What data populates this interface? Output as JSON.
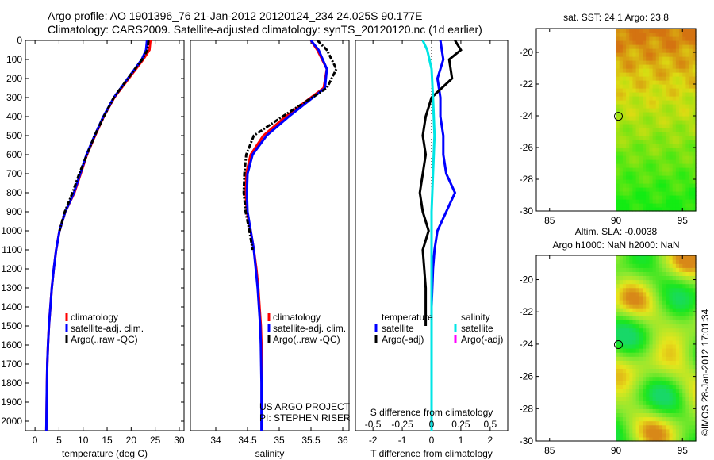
{
  "header": {
    "line1": "Argo profile: AO 1901396_76 21-Jan-2012 20120124_234 24.025S 90.177E",
    "line2": "Climatology: CARS2009. Satellite-adjusted climatology: synTS_20120120.nc (1d earlier)"
  },
  "colors": {
    "climatology": "#ff0000",
    "satellite": "#0000ff",
    "argo": "#000000",
    "sal_satellite": "#00e5e5",
    "sal_argo": "#ff00ff"
  },
  "chart_data": [
    {
      "type": "line",
      "id": "temperature",
      "xlabel": "temperature (deg C)",
      "ylabel": "",
      "xlim": [
        -2,
        31
      ],
      "ylim": [
        2050,
        0
      ],
      "xticks": [
        0,
        5,
        10,
        15,
        20,
        25,
        30
      ],
      "yticks": [
        0,
        100,
        200,
        300,
        400,
        500,
        600,
        700,
        800,
        900,
        1000,
        1100,
        1200,
        1300,
        1400,
        1500,
        1600,
        1700,
        1800,
        1900,
        2000
      ],
      "legend": [
        "climatology",
        "satellite-adj. clim.",
        "Argo(..raw -QC)"
      ],
      "series": [
        {
          "name": "climatology",
          "color": "#ff0000",
          "x": [
            24,
            23.8,
            22.5,
            19.5,
            16.5,
            14.3,
            12.5,
            10.8,
            9.5,
            8.2,
            6.3,
            5.1,
            4.4,
            3.9,
            3.5,
            3.2,
            2.9,
            2.7,
            2.55,
            2.45,
            2.35
          ],
          "y": [
            0,
            50,
            100,
            200,
            300,
            400,
            500,
            600,
            700,
            800,
            900,
            1000,
            1100,
            1200,
            1300,
            1400,
            1500,
            1600,
            1700,
            1850,
            2050
          ]
        },
        {
          "name": "satellite-adj. clim.",
          "color": "#0000ff",
          "x": [
            23.3,
            23.1,
            22.2,
            19.3,
            16.4,
            14.2,
            12.4,
            10.7,
            9.4,
            8.1,
            6.3,
            5.1,
            4.4,
            3.9,
            3.5,
            3.2,
            2.9,
            2.7,
            2.55,
            2.45,
            2.35
          ],
          "y": [
            0,
            50,
            100,
            200,
            300,
            400,
            500,
            600,
            700,
            800,
            900,
            1000,
            1100,
            1200,
            1300,
            1400,
            1500,
            1600,
            1700,
            1850,
            2050
          ]
        },
        {
          "name": "Argo(..raw -QC)",
          "color": "#000000",
          "x": [
            23.6,
            23.4,
            22.3,
            19.3,
            16.4,
            14.3,
            12.4,
            10.8,
            9.2,
            7.8,
            6.2,
            5.1
          ],
          "y": [
            0,
            50,
            100,
            200,
            300,
            400,
            500,
            600,
            700,
            800,
            900,
            1000
          ]
        }
      ]
    },
    {
      "type": "line",
      "id": "salinity",
      "xlabel": "salinity",
      "ylabel": "",
      "xlim": [
        33.6,
        36.1
      ],
      "ylim": [
        2050,
        0
      ],
      "xticks": [
        34,
        34.5,
        35,
        35.5,
        36
      ],
      "xticklabels": [
        "34",
        "34.5",
        "35",
        "35.5",
        "36"
      ],
      "legend": [
        "climatology",
        "satellite-adj. clim.",
        "Argo(..raw -QC)"
      ],
      "annotations": [
        "US ARGO PROJECT",
        "PI: STEPHEN RISER"
      ],
      "series": [
        {
          "name": "climatology",
          "color": "#ff0000",
          "x": [
            35.5,
            35.6,
            35.75,
            35.7,
            35.1,
            34.75,
            34.55,
            34.48,
            34.47,
            34.49,
            34.55,
            34.6,
            34.64,
            34.67,
            34.69,
            34.71,
            34.72,
            34.73,
            34.73
          ],
          "y": [
            0,
            50,
            150,
            250,
            400,
            500,
            600,
            700,
            800,
            900,
            1000,
            1100,
            1200,
            1300,
            1400,
            1500,
            1600,
            1800,
            2050
          ]
        },
        {
          "name": "satellite-adj. clim.",
          "color": "#0000ff",
          "x": [
            35.5,
            35.62,
            35.75,
            35.72,
            35.15,
            34.8,
            34.58,
            34.5,
            34.49,
            34.5,
            34.55,
            34.6,
            34.63,
            34.66,
            34.68,
            34.7,
            34.71,
            34.72,
            34.72
          ],
          "y": [
            0,
            50,
            150,
            250,
            400,
            500,
            600,
            700,
            800,
            900,
            1000,
            1100,
            1200,
            1300,
            1400,
            1500,
            1600,
            1800,
            2050
          ]
        },
        {
          "name": "Argo(..raw -QC)",
          "color": "#000000",
          "x": [
            35.6,
            35.75,
            35.9,
            35.75,
            35.05,
            34.6,
            34.48,
            34.45,
            34.44,
            34.47,
            34.53,
            34.58
          ],
          "y": [
            0,
            50,
            150,
            250,
            400,
            500,
            600,
            700,
            800,
            900,
            1000,
            1100
          ]
        }
      ]
    },
    {
      "type": "line",
      "id": "difference",
      "xlabel": "T difference from climatology",
      "xlabel_top": "S difference from climatology",
      "xlim": [
        -2.6,
        2.6
      ],
      "ylim": [
        2050,
        0
      ],
      "xticks": [
        -2,
        -1,
        0,
        1,
        2
      ],
      "xticks_top": [
        -0.5,
        -0.25,
        0,
        0.25,
        0.5
      ],
      "legend_groups": [
        {
          "title": "temperature",
          "items": [
            "satellite",
            "Argo(-adj)"
          ]
        },
        {
          "title": "salinity",
          "items": [
            "satellite",
            "Argo(-adj)"
          ]
        }
      ],
      "series": [
        {
          "name": "temperature satellite",
          "color": "#0000ff",
          "x": [
            0.3,
            0.35,
            0.4,
            0.2,
            0.3,
            0.3,
            0.4,
            0.4,
            0.5,
            0.8,
            0.5,
            0.2,
            0.1,
            0.05,
            0.0,
            0.0,
            0.0
          ],
          "y": [
            0,
            50,
            100,
            200,
            300,
            400,
            500,
            600,
            700,
            800,
            900,
            1000,
            1100,
            1200,
            1400,
            1700,
            2050
          ]
        },
        {
          "name": "temperature Argo(-adj)",
          "color": "#000000",
          "x": [
            0.8,
            1.0,
            0.6,
            0.7,
            0.0,
            -0.2,
            -0.3,
            -0.2,
            -0.3,
            -0.4,
            -0.3,
            -0.1,
            -0.3,
            -0.2,
            -0.2
          ],
          "y": [
            0,
            50,
            100,
            200,
            300,
            400,
            500,
            600,
            700,
            800,
            900,
            1000,
            1100,
            1300,
            1500
          ]
        },
        {
          "name": "salinity satellite",
          "color": "#00e5e5",
          "x": [
            -0.3,
            -0.15,
            0.0,
            0.05,
            0.1,
            0.05,
            0.0,
            0.0,
            0.0,
            0.0,
            0.0
          ],
          "y": [
            0,
            50,
            150,
            300,
            500,
            700,
            900,
            1000,
            1200,
            1600,
            2050
          ]
        }
      ]
    },
    {
      "type": "heatmap",
      "id": "sst_map",
      "title": "sat. SST: 24.1  Argo: 23.8",
      "xlim": [
        84,
        96
      ],
      "ylim": [
        -30,
        -18.5
      ],
      "xticks": [
        85,
        90,
        95
      ],
      "yticks": [
        -20,
        -22,
        -24,
        -26,
        -28,
        -30
      ],
      "data_lon_range": [
        90,
        96
      ],
      "marker": {
        "lon": 90.18,
        "lat": -24.03
      }
    },
    {
      "type": "heatmap",
      "id": "sla_map",
      "title": "Altim. SLA: -0.0038",
      "subtitle": "Argo h1000: NaN h2000: NaN",
      "xlim": [
        84,
        96
      ],
      "ylim": [
        -30,
        -18.5
      ],
      "xticks": [
        85,
        90,
        95
      ],
      "yticks": [
        -20,
        -22,
        -24,
        -26,
        -28,
        -30
      ],
      "data_lon_range": [
        90,
        96
      ],
      "marker": {
        "lon": 90.18,
        "lat": -24.03
      }
    }
  ],
  "footer": {
    "credit": "©IMOS 28-Jan-2012 17:01:34"
  }
}
